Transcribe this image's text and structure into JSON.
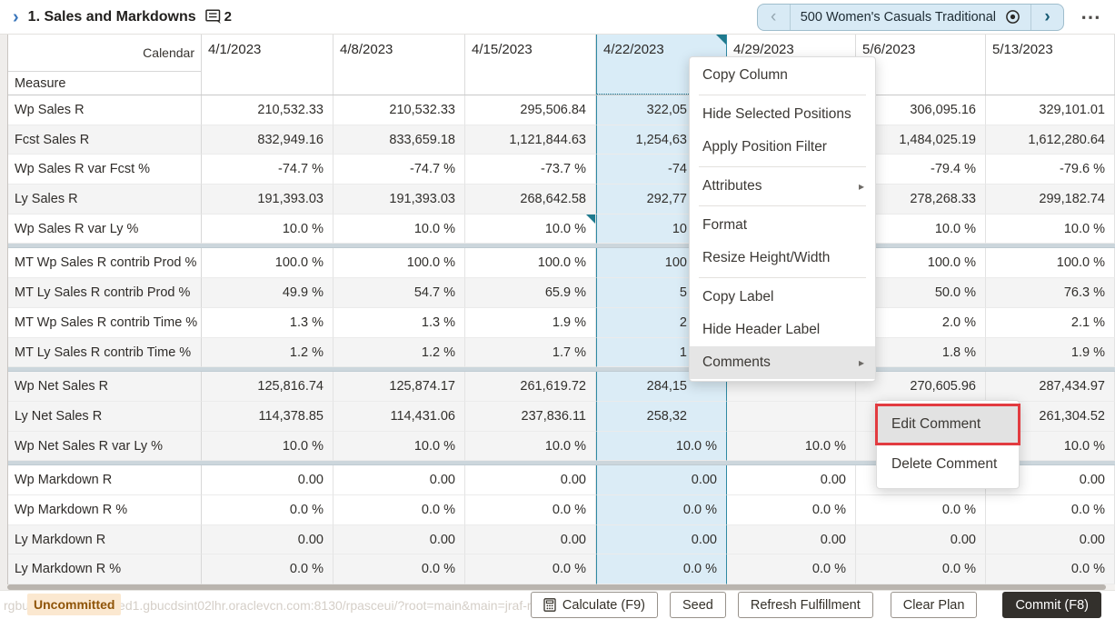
{
  "window": {
    "title_chevron": "›",
    "title": "1. Sales and Markdowns",
    "comment_count": "2",
    "overflow_icon": "⋯"
  },
  "position_nav": {
    "prev_icon": "‹",
    "label": "500 Women's Casuals Traditional",
    "target_icon": "bullseye",
    "next_icon": "›"
  },
  "grid": {
    "corner": {
      "column_dimension": "Calendar",
      "row_dimension": "Measure"
    },
    "columns": [
      "4/1/2023",
      "4/8/2023",
      "4/15/2023",
      "4/22/2023",
      "4/29/2023",
      "5/6/2023",
      "5/13/2023"
    ],
    "selected_column": "4/22/2023",
    "selected_index": 3,
    "comment_markers": [
      {
        "location": "header",
        "column": "4/22/2023"
      },
      {
        "location": "cell",
        "row": "Wp Sales R var Ly %",
        "column": "4/15/2023"
      }
    ],
    "group_breaks_after_rows": [
      5,
      9,
      12
    ],
    "rows": [
      {
        "measure": "Wp Sales R",
        "shade": "w",
        "values": [
          "210,532.33",
          "210,532.33",
          "295,506.84",
          "322,05",
          "",
          "306,095.16",
          "329,101.01"
        ]
      },
      {
        "measure": "Fcst Sales R",
        "shade": "g",
        "values": [
          "832,949.16",
          "833,659.18",
          "1,121,844.63",
          "1,254,63",
          "",
          "1,484,025.19",
          "1,612,280.64"
        ]
      },
      {
        "measure": "Wp Sales R var Fcst %",
        "shade": "w",
        "values": [
          "-74.7 %",
          "-74.7 %",
          "-73.7 %",
          "-74",
          "",
          "-79.4 %",
          "-79.6 %"
        ]
      },
      {
        "measure": "Ly Sales R",
        "shade": "g",
        "values": [
          "191,393.03",
          "191,393.03",
          "268,642.58",
          "292,77",
          "",
          "278,268.33",
          "299,182.74"
        ]
      },
      {
        "measure": "Wp Sales R var Ly %",
        "shade": "w",
        "values": [
          "10.0 %",
          "10.0 %",
          "10.0 %",
          "10",
          "",
          "10.0 %",
          "10.0 %"
        ]
      },
      {
        "measure": "MT Wp Sales R contrib Prod %",
        "shade": "w",
        "values": [
          "100.0 %",
          "100.0 %",
          "100.0 %",
          "100",
          "",
          "100.0 %",
          "100.0 %"
        ]
      },
      {
        "measure": "MT Ly Sales R contrib Prod %",
        "shade": "g",
        "values": [
          "49.9 %",
          "54.7 %",
          "65.9 %",
          "5",
          "",
          "50.0 %",
          "76.3 %"
        ]
      },
      {
        "measure": "MT Wp Sales R contrib Time %",
        "shade": "w",
        "values": [
          "1.3 %",
          "1.3 %",
          "1.9 %",
          "2",
          "",
          "2.0 %",
          "2.1 %"
        ]
      },
      {
        "measure": "MT Ly Sales R contrib Time %",
        "shade": "g",
        "values": [
          "1.2 %",
          "1.2 %",
          "1.7 %",
          "1",
          "",
          "1.8 %",
          "1.9 %"
        ]
      },
      {
        "measure": "Wp Net Sales R",
        "shade": "g",
        "values": [
          "125,816.74",
          "125,874.17",
          "261,619.72",
          "284,15",
          "",
          "270,605.96",
          "287,434.97"
        ]
      },
      {
        "measure": "Ly Net Sales R",
        "shade": "g",
        "values": [
          "114,378.85",
          "114,431.06",
          "237,836.11",
          "258,32",
          "",
          "",
          "261,304.52"
        ]
      },
      {
        "measure": "Wp Net Sales R var Ly %",
        "shade": "g",
        "values": [
          "10.0 %",
          "10.0 %",
          "10.0 %",
          "10.0 %",
          "10.0 %",
          "",
          "10.0 %"
        ]
      },
      {
        "measure": "Wp Markdown R",
        "shade": "w",
        "values": [
          "0.00",
          "0.00",
          "0.00",
          "0.00",
          "0.00",
          "0.00",
          "0.00"
        ]
      },
      {
        "measure": "Wp Markdown R %",
        "shade": "w",
        "values": [
          "0.0 %",
          "0.0 %",
          "0.0 %",
          "0.0 %",
          "0.0 %",
          "0.0 %",
          "0.0 %"
        ]
      },
      {
        "measure": "Ly Markdown R",
        "shade": "g",
        "values": [
          "0.00",
          "0.00",
          "0.00",
          "0.00",
          "0.00",
          "0.00",
          "0.00"
        ]
      },
      {
        "measure": "Ly Markdown R %",
        "shade": "g",
        "values": [
          "0.0 %",
          "0.0 %",
          "0.0 %",
          "0.0 %",
          "0.0 %",
          "0.0 %",
          "0.0 %"
        ]
      }
    ]
  },
  "context_menu": {
    "items": [
      {
        "label": "Copy Column"
      },
      {
        "separator": true
      },
      {
        "label": "Hide Selected Positions"
      },
      {
        "label": "Apply Position Filter"
      },
      {
        "separator": true
      },
      {
        "label": "Attributes",
        "submenu_arrow": true
      },
      {
        "separator": true
      },
      {
        "label": "Format"
      },
      {
        "label": "Resize Height/Width"
      },
      {
        "separator": true
      },
      {
        "label": "Copy Label"
      },
      {
        "label": "Hide Header Label"
      },
      {
        "label": "Comments",
        "submenu_arrow": true,
        "highlighted": true
      }
    ],
    "submenu_arrow_icon": "▸"
  },
  "comments_submenu": {
    "items": [
      {
        "label": "Edit Comment",
        "highlighted": true,
        "annotated": true
      },
      {
        "label": "Delete Comment"
      }
    ]
  },
  "footer": {
    "status_badge": "Uncommitted",
    "browser_status_url": "rgbu-...3.snlhrprshared1.gbucdsint02lhr.oraclevcn.com:8130/rpasceui/?root=main&main=jraf-main-content-tab-4#",
    "buttons": [
      {
        "label": "Calculate (F9)",
        "icon": "calculator"
      },
      {
        "label": "Seed"
      },
      {
        "label": "Refresh Fulfillment"
      },
      {
        "label": "Clear Plan"
      },
      {
        "label": "Commit (F8)",
        "primary": true
      }
    ]
  },
  "colors": {
    "accent_teal": "#1f7a8e",
    "selected_column_fill": "#dbecf6",
    "selected_header_fill": "#d9ecf7",
    "annotation_red": "#e23b40",
    "badge_bg": "#fbe8d0",
    "badge_text": "#8f5408",
    "commit_button_bg": "#33302c",
    "gray_row": "#f4f4f4",
    "menu_hover": "#e5e5e5",
    "title_chevron_blue": "#3a76bb"
  }
}
